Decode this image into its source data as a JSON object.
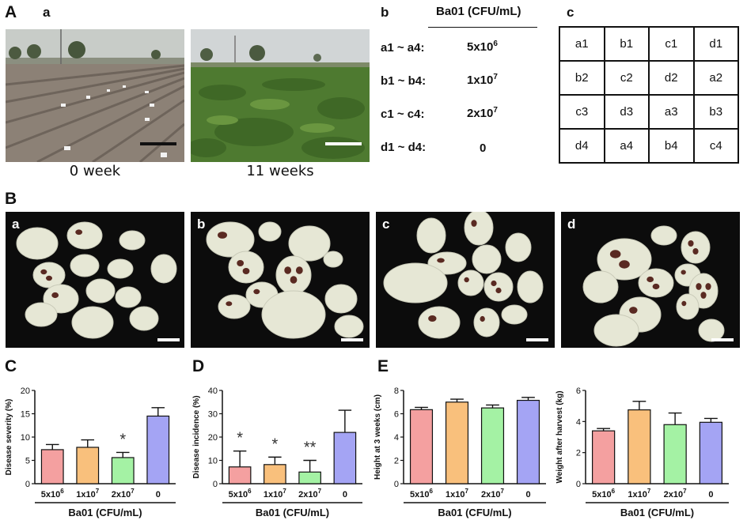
{
  "panels": {
    "A": "A",
    "Aa": "a",
    "Ab": "b",
    "Ac": "c",
    "B": "B",
    "Ba": "a",
    "Bb": "b",
    "Bc": "c",
    "Bd": "d",
    "C": "C",
    "D": "D",
    "E": "E"
  },
  "field_captions": [
    "0 week",
    "11 weeks"
  ],
  "table_b": {
    "header": "Ba01 (CFU/mL)",
    "rows": [
      {
        "group": "a1 ~ a4:",
        "base": "5x10",
        "exp": "6"
      },
      {
        "group": "b1 ~ b4:",
        "base": "1x10",
        "exp": "7"
      },
      {
        "group": "c1 ~ c4:",
        "base": "2x10",
        "exp": "7"
      },
      {
        "group": "d1 ~ d4:",
        "base": "0",
        "exp": ""
      }
    ]
  },
  "layout_c": [
    [
      "a1",
      "b1",
      "c1",
      "d1"
    ],
    [
      "b2",
      "c2",
      "d2",
      "a2"
    ],
    [
      "c3",
      "d3",
      "a3",
      "b3"
    ],
    [
      "d4",
      "a4",
      "b4",
      "c4"
    ]
  ],
  "colors": {
    "s1": "#f4a0a0",
    "s2": "#f9c07c",
    "s3": "#a4f2a4",
    "s4": "#a4a4f4",
    "photo_bg": "#0c0c0c",
    "potato": "#e6e7d5",
    "lesion": "#5a2a22",
    "soil": "#8a7f74",
    "crop": "#4f7a32",
    "sky": "#c9ccc8"
  },
  "chart_data": [
    {
      "type": "bar",
      "panel": "C",
      "categories": [
        "5x10^6",
        "1x10^7",
        "2x10^7",
        "0"
      ],
      "values": [
        7.3,
        7.8,
        5.6,
        14.5
      ],
      "errors": [
        1.1,
        1.6,
        1.1,
        1.8
      ],
      "significance": [
        "",
        "",
        "*",
        ""
      ],
      "ylabel": "Disease severity (%)",
      "xlabel": "Ba01 (CFU/mL)",
      "ylim": [
        0,
        20
      ],
      "yticks": [
        0,
        5,
        10,
        15,
        20
      ]
    },
    {
      "type": "bar",
      "panel": "D",
      "categories": [
        "5x10^6",
        "1x10^7",
        "2x10^7",
        "0"
      ],
      "values": [
        7.2,
        8.2,
        5.0,
        22.0
      ],
      "errors": [
        6.8,
        3.2,
        5.0,
        9.5
      ],
      "significance": [
        "*",
        "*",
        "**",
        ""
      ],
      "ylabel": "Disease incidence (%)",
      "xlabel": "Ba01 (CFU/mL)",
      "ylim": [
        0,
        40
      ],
      "yticks": [
        0,
        10,
        20,
        30,
        40
      ]
    },
    {
      "type": "bar",
      "panel": "E-height",
      "categories": [
        "5x10^6",
        "1x10^7",
        "2x10^7",
        "0"
      ],
      "values": [
        6.35,
        7.0,
        6.5,
        7.15
      ],
      "errors": [
        0.2,
        0.25,
        0.25,
        0.25
      ],
      "significance": [
        "",
        "",
        "",
        ""
      ],
      "ylabel": "Height at 3 weeks (cm)",
      "xlabel": "Ba01 (CFU/mL)",
      "ylim": [
        0,
        8
      ],
      "yticks": [
        0,
        2,
        4,
        6,
        8
      ]
    },
    {
      "type": "bar",
      "panel": "E-weight",
      "categories": [
        "5x10^6",
        "1x10^7",
        "2x10^7",
        "0"
      ],
      "values": [
        3.4,
        4.75,
        3.8,
        3.95
      ],
      "errors": [
        0.15,
        0.55,
        0.75,
        0.25
      ],
      "significance": [
        "",
        "",
        "",
        ""
      ],
      "ylabel": "Weight after harvest (kg)",
      "xlabel": "Ba01 (CFU/mL)",
      "ylim": [
        0,
        6
      ],
      "yticks": [
        0,
        2,
        4,
        6
      ]
    }
  ]
}
